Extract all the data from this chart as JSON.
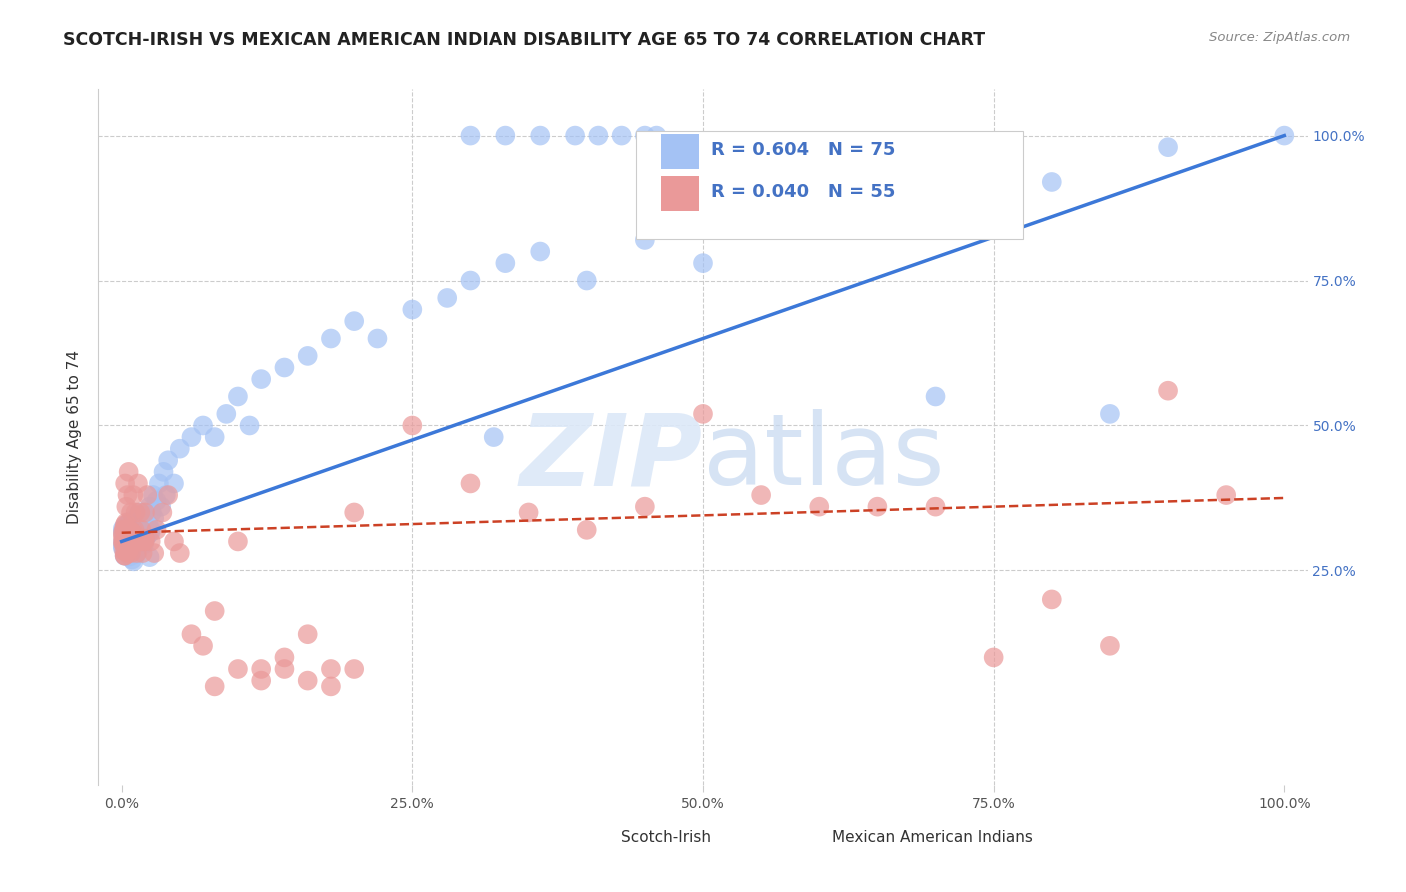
{
  "title": "SCOTCH-IRISH VS MEXICAN AMERICAN INDIAN DISABILITY AGE 65 TO 74 CORRELATION CHART",
  "source": "Source: ZipAtlas.com",
  "ylabel": "Disability Age 65 to 74",
  "watermark": "ZIPatlas",
  "legend_label1": "Scotch-Irish",
  "legend_label2": "Mexican American Indians",
  "R1": 0.604,
  "N1": 75,
  "R2": 0.04,
  "N2": 55,
  "color_blue": "#a4c2f4",
  "color_pink": "#ea9999",
  "color_blue_line": "#3c78d8",
  "color_pink_line": "#cc4125",
  "xlim": [
    -0.02,
    1.02
  ],
  "ylim": [
    -0.12,
    1.08
  ],
  "background_color": "#ffffff",
  "grid_color": "#cccccc",
  "blue_x": [
    0.002,
    0.003,
    0.004,
    0.005,
    0.005,
    0.006,
    0.006,
    0.007,
    0.007,
    0.008,
    0.008,
    0.009,
    0.009,
    0.01,
    0.01,
    0.011,
    0.011,
    0.012,
    0.012,
    0.013,
    0.013,
    0.014,
    0.015,
    0.015,
    0.016,
    0.017,
    0.018,
    0.019,
    0.02,
    0.021,
    0.022,
    0.023,
    0.024,
    0.025,
    0.026,
    0.027,
    0.028,
    0.03,
    0.032,
    0.034,
    0.036,
    0.038,
    0.04,
    0.045,
    0.05,
    0.06,
    0.07,
    0.08,
    0.09,
    0.1,
    0.11,
    0.12,
    0.14,
    0.16,
    0.18,
    0.2,
    0.22,
    0.25,
    0.28,
    0.3,
    0.33,
    0.36,
    0.4,
    0.45,
    0.5,
    0.55,
    0.6,
    0.65,
    0.7,
    0.75,
    0.8,
    0.85,
    0.9,
    1.0,
    0.32
  ],
  "blue_y": [
    0.3,
    0.31,
    0.29,
    0.32,
    0.28,
    0.3,
    0.33,
    0.29,
    0.31,
    0.32,
    0.3,
    0.31,
    0.28,
    0.33,
    0.3,
    0.31,
    0.29,
    0.34,
    0.3,
    0.32,
    0.28,
    0.31,
    0.35,
    0.29,
    0.33,
    0.31,
    0.34,
    0.3,
    0.32,
    0.35,
    0.31,
    0.33,
    0.36,
    0.32,
    0.35,
    0.38,
    0.34,
    0.37,
    0.4,
    0.36,
    0.42,
    0.38,
    0.44,
    0.4,
    0.46,
    0.48,
    0.5,
    0.48,
    0.52,
    0.55,
    0.5,
    0.58,
    0.6,
    0.62,
    0.65,
    0.68,
    0.65,
    0.7,
    0.72,
    0.75,
    0.78,
    0.8,
    0.75,
    0.82,
    0.78,
    0.85,
    0.88,
    0.9,
    0.55,
    0.95,
    0.92,
    0.52,
    0.98,
    1.0,
    0.48
  ],
  "pink_x": [
    0.002,
    0.003,
    0.003,
    0.004,
    0.005,
    0.005,
    0.006,
    0.006,
    0.007,
    0.008,
    0.008,
    0.009,
    0.01,
    0.011,
    0.012,
    0.013,
    0.014,
    0.015,
    0.016,
    0.017,
    0.018,
    0.019,
    0.02,
    0.022,
    0.025,
    0.028,
    0.03,
    0.035,
    0.04,
    0.045,
    0.05,
    0.06,
    0.07,
    0.08,
    0.1,
    0.12,
    0.14,
    0.16,
    0.18,
    0.2,
    0.25,
    0.3,
    0.35,
    0.4,
    0.45,
    0.5,
    0.55,
    0.6,
    0.65,
    0.7,
    0.75,
    0.8,
    0.85,
    0.9,
    0.95
  ],
  "pink_y": [
    0.3,
    0.4,
    0.32,
    0.36,
    0.28,
    0.38,
    0.32,
    0.42,
    0.3,
    0.28,
    0.35,
    0.3,
    0.38,
    0.32,
    0.35,
    0.28,
    0.4,
    0.3,
    0.35,
    0.32,
    0.28,
    0.3,
    0.35,
    0.38,
    0.3,
    0.28,
    0.32,
    0.35,
    0.38,
    0.3,
    0.28,
    0.14,
    0.12,
    0.18,
    0.3,
    0.08,
    0.1,
    0.14,
    0.08,
    0.35,
    0.5,
    0.4,
    0.35,
    0.32,
    0.36,
    0.52,
    0.38,
    0.36,
    0.36,
    0.36,
    0.1,
    0.2,
    0.12,
    0.56,
    0.38
  ],
  "blue_line": [
    0.0,
    0.3,
    1.0,
    1.0
  ],
  "pink_line": [
    0.0,
    0.315,
    1.0,
    0.375
  ],
  "xticks": [
    0.0,
    0.25,
    0.5,
    0.75,
    1.0
  ],
  "xticklabels": [
    "0.0%",
    "25.0%",
    "50.0%",
    "75.0%",
    "100.0%"
  ],
  "yticks": [
    0.25,
    0.5,
    0.75,
    1.0
  ],
  "yticklabels": [
    "25.0%",
    "50.0%",
    "75.0%",
    "100.0%"
  ],
  "grid_yticks": [
    0.25,
    0.5,
    0.75,
    1.0
  ],
  "grid_xticks": [
    0.25,
    0.5,
    0.75
  ]
}
